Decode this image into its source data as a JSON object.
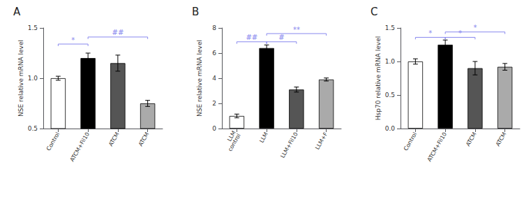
{
  "chart_data": [
    {
      "type": "bar",
      "title": "A",
      "ylabel": "NSE relative mRNA level",
      "categories": [
        "Control",
        "ATCM+Fil10",
        "ATCM",
        "ATCM"
      ],
      "values": [
        1.0,
        1.2,
        1.15,
        0.75
      ],
      "errors": [
        0.02,
        0.05,
        0.08,
        0.03
      ],
      "colors": [
        "white",
        "black",
        "#555555",
        "#aaaaaa"
      ],
      "ylim": [
        0.5,
        1.5
      ],
      "yticks": [
        0.5,
        {
          "value": 1.0,
          "label": "1.0"
        },
        1.5
      ],
      "grid": false,
      "annotations": [
        {
          "text": "*",
          "from": 0,
          "to": 1,
          "y": 1.34,
          "color": "#8888ee"
        },
        {
          "text": "##",
          "from": 1,
          "to": 3,
          "y": 1.41,
          "color": "#8888ee"
        }
      ]
    },
    {
      "type": "bar",
      "title": "B",
      "ylabel": "NSE relative mRNA level",
      "categories": [
        "LLM\ncontrol",
        "LLM",
        "LLM+Fil10",
        "LLM+F"
      ],
      "values": [
        1.0,
        6.4,
        3.1,
        3.9
      ],
      "errors": [
        0.15,
        0.25,
        0.2,
        0.12
      ],
      "colors": [
        "white",
        "black",
        "#555555",
        "#aaaaaa"
      ],
      "ylim": [
        0,
        8
      ],
      "yticks": [
        0,
        2,
        4,
        6,
        8
      ],
      "grid": false,
      "annotations": [
        {
          "text": "##",
          "from": 0,
          "to": 1,
          "y": 6.9,
          "color": "#8888ee"
        },
        {
          "text": "#",
          "from": 1,
          "to": 2,
          "y": 6.9,
          "color": "#8888ee"
        },
        {
          "text": "**",
          "from": 1,
          "to": 3,
          "y": 7.55,
          "color": "#8888ee"
        }
      ]
    },
    {
      "type": "bar",
      "title": "C",
      "ylabel": "Hsp70 relative mRNA level",
      "categories": [
        "Control",
        "ATCM+Fil10",
        "ATCM",
        "ATCM"
      ],
      "values": [
        1.0,
        1.25,
        0.9,
        0.92
      ],
      "errors": [
        0.04,
        0.07,
        0.1,
        0.05
      ],
      "colors": [
        "white",
        "black",
        "#555555",
        "#aaaaaa"
      ],
      "ylim": [
        0,
        1.5
      ],
      "yticks": [
        {
          "value": 0,
          "label": "0.0"
        },
        0.5,
        {
          "value": 1.0,
          "label": "1.0"
        },
        1.5
      ],
      "grid": false,
      "annotations": [
        {
          "text": "*",
          "from": 0,
          "to": 1,
          "y": 1.36,
          "color": "#8888ee"
        },
        {
          "text": "*",
          "from": 1,
          "to": 2,
          "y": 1.36,
          "color": "#8888ee"
        },
        {
          "text": "*",
          "from": 1,
          "to": 3,
          "y": 1.44,
          "color": "#8888ee"
        }
      ]
    }
  ]
}
